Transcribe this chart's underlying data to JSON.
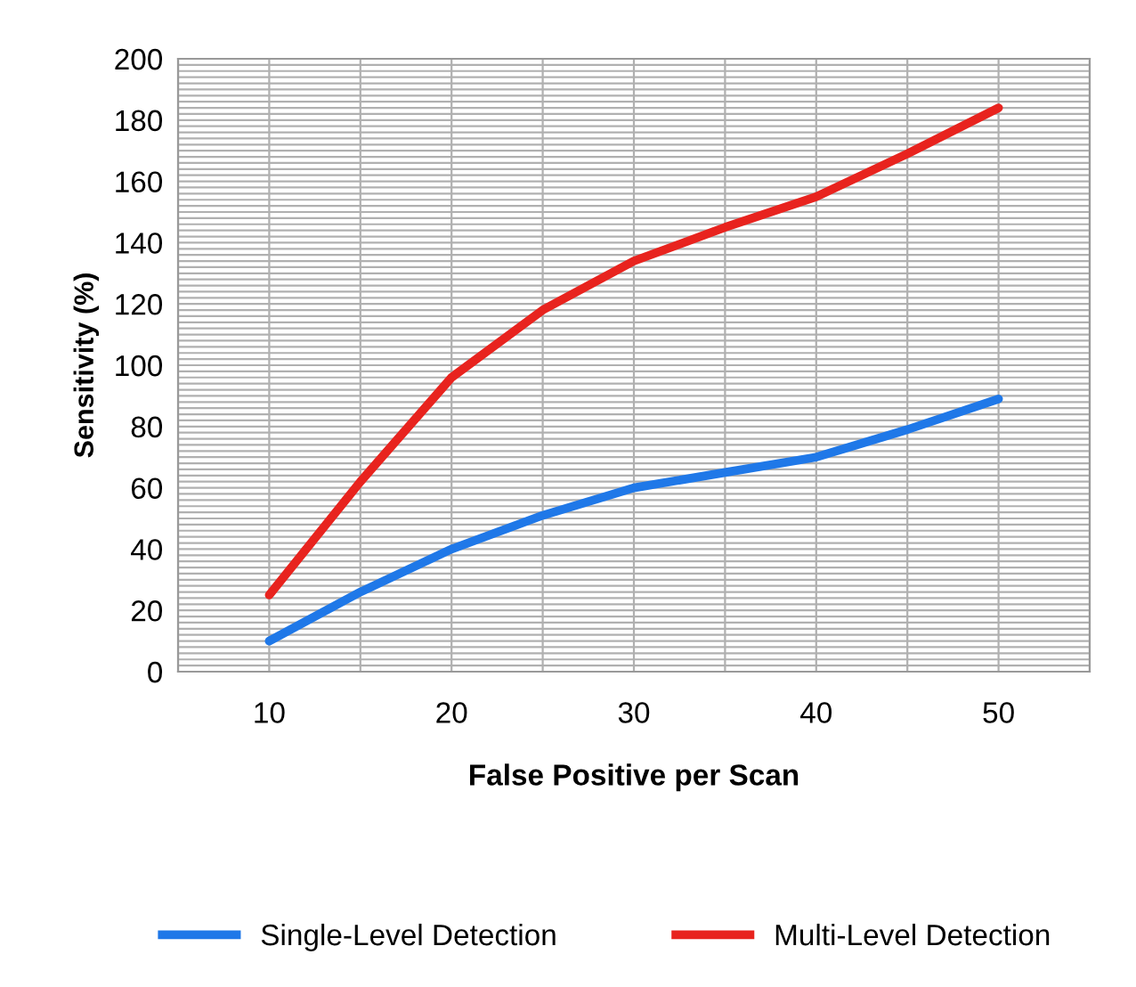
{
  "chart_data": {
    "type": "line",
    "xlabel": "False Positive per Scan",
    "ylabel": "Sensitivity (%)",
    "x": [
      10,
      15,
      20,
      25,
      30,
      35,
      40,
      45,
      50
    ],
    "series": [
      {
        "name": "Single-Level Detection",
        "color": "#1f78e8",
        "values": [
          10,
          26,
          40,
          51,
          60,
          65,
          70,
          79,
          89
        ]
      },
      {
        "name": "Multi-Level Detection",
        "color": "#e8231e",
        "values": [
          25,
          62,
          96,
          118,
          134,
          145,
          155,
          169,
          184
        ]
      }
    ],
    "xlim": [
      5,
      55
    ],
    "xticks": [
      {
        "value": 5,
        "label": null
      },
      10,
      {
        "value": 15,
        "label": null
      },
      20,
      {
        "value": 25,
        "label": null
      },
      30,
      {
        "value": 35,
        "label": null
      },
      40,
      {
        "value": 45,
        "label": null
      },
      50,
      {
        "value": 55,
        "label": null
      }
    ],
    "ylim": [
      0,
      200
    ],
    "yticks": [
      0,
      {
        "value": 2,
        "label": null
      },
      {
        "value": 4,
        "label": null
      },
      {
        "value": 6,
        "label": null
      },
      {
        "value": 8,
        "label": null
      },
      {
        "value": 10,
        "label": null
      },
      {
        "value": 12,
        "label": null
      },
      {
        "value": 14,
        "label": null
      },
      {
        "value": 16,
        "label": null
      },
      {
        "value": 18,
        "label": null
      },
      20,
      {
        "value": 22,
        "label": null
      },
      {
        "value": 24,
        "label": null
      },
      {
        "value": 26,
        "label": null
      },
      {
        "value": 28,
        "label": null
      },
      {
        "value": 30,
        "label": null
      },
      {
        "value": 32,
        "label": null
      },
      {
        "value": 34,
        "label": null
      },
      {
        "value": 36,
        "label": null
      },
      {
        "value": 38,
        "label": null
      },
      40,
      {
        "value": 42,
        "label": null
      },
      {
        "value": 44,
        "label": null
      },
      {
        "value": 46,
        "label": null
      },
      {
        "value": 48,
        "label": null
      },
      {
        "value": 50,
        "label": null
      },
      {
        "value": 52,
        "label": null
      },
      {
        "value": 54,
        "label": null
      },
      {
        "value": 56,
        "label": null
      },
      {
        "value": 58,
        "label": null
      },
      60,
      {
        "value": 62,
        "label": null
      },
      {
        "value": 64,
        "label": null
      },
      {
        "value": 66,
        "label": null
      },
      {
        "value": 68,
        "label": null
      },
      {
        "value": 70,
        "label": null
      },
      {
        "value": 72,
        "label": null
      },
      {
        "value": 74,
        "label": null
      },
      {
        "value": 76,
        "label": null
      },
      {
        "value": 78,
        "label": null
      },
      80,
      {
        "value": 82,
        "label": null
      },
      {
        "value": 84,
        "label": null
      },
      {
        "value": 86,
        "label": null
      },
      {
        "value": 88,
        "label": null
      },
      {
        "value": 90,
        "label": null
      },
      {
        "value": 92,
        "label": null
      },
      {
        "value": 94,
        "label": null
      },
      {
        "value": 96,
        "label": null
      },
      {
        "value": 98,
        "label": null
      },
      100,
      {
        "value": 102,
        "label": null
      },
      {
        "value": 104,
        "label": null
      },
      {
        "value": 106,
        "label": null
      },
      {
        "value": 108,
        "label": null
      },
      {
        "value": 110,
        "label": null
      },
      {
        "value": 112,
        "label": null
      },
      {
        "value": 114,
        "label": null
      },
      {
        "value": 116,
        "label": null
      },
      {
        "value": 118,
        "label": null
      },
      120,
      {
        "value": 122,
        "label": null
      },
      {
        "value": 124,
        "label": null
      },
      {
        "value": 126,
        "label": null
      },
      {
        "value": 128,
        "label": null
      },
      {
        "value": 130,
        "label": null
      },
      {
        "value": 132,
        "label": null
      },
      {
        "value": 134,
        "label": null
      },
      {
        "value": 136,
        "label": null
      },
      {
        "value": 138,
        "label": null
      },
      140,
      {
        "value": 142,
        "label": null
      },
      {
        "value": 144,
        "label": null
      },
      {
        "value": 146,
        "label": null
      },
      {
        "value": 148,
        "label": null
      },
      {
        "value": 150,
        "label": null
      },
      {
        "value": 152,
        "label": null
      },
      {
        "value": 154,
        "label": null
      },
      {
        "value": 156,
        "label": null
      },
      {
        "value": 158,
        "label": null
      },
      160,
      {
        "value": 162,
        "label": null
      },
      {
        "value": 164,
        "label": null
      },
      {
        "value": 166,
        "label": null
      },
      {
        "value": 168,
        "label": null
      },
      {
        "value": 170,
        "label": null
      },
      {
        "value": 172,
        "label": null
      },
      {
        "value": 174,
        "label": null
      },
      {
        "value": 176,
        "label": null
      },
      {
        "value": 178,
        "label": null
      },
      180,
      {
        "value": 182,
        "label": null
      },
      {
        "value": 184,
        "label": null
      },
      {
        "value": 186,
        "label": null
      },
      {
        "value": 188,
        "label": null
      },
      {
        "value": 190,
        "label": null
      },
      {
        "value": 192,
        "label": null
      },
      {
        "value": 194,
        "label": null
      },
      {
        "value": 196,
        "label": null
      },
      {
        "value": 198,
        "label": null
      },
      200
    ],
    "grid": true,
    "legend": "bottom",
    "marker": "none",
    "line_style": "solid"
  }
}
